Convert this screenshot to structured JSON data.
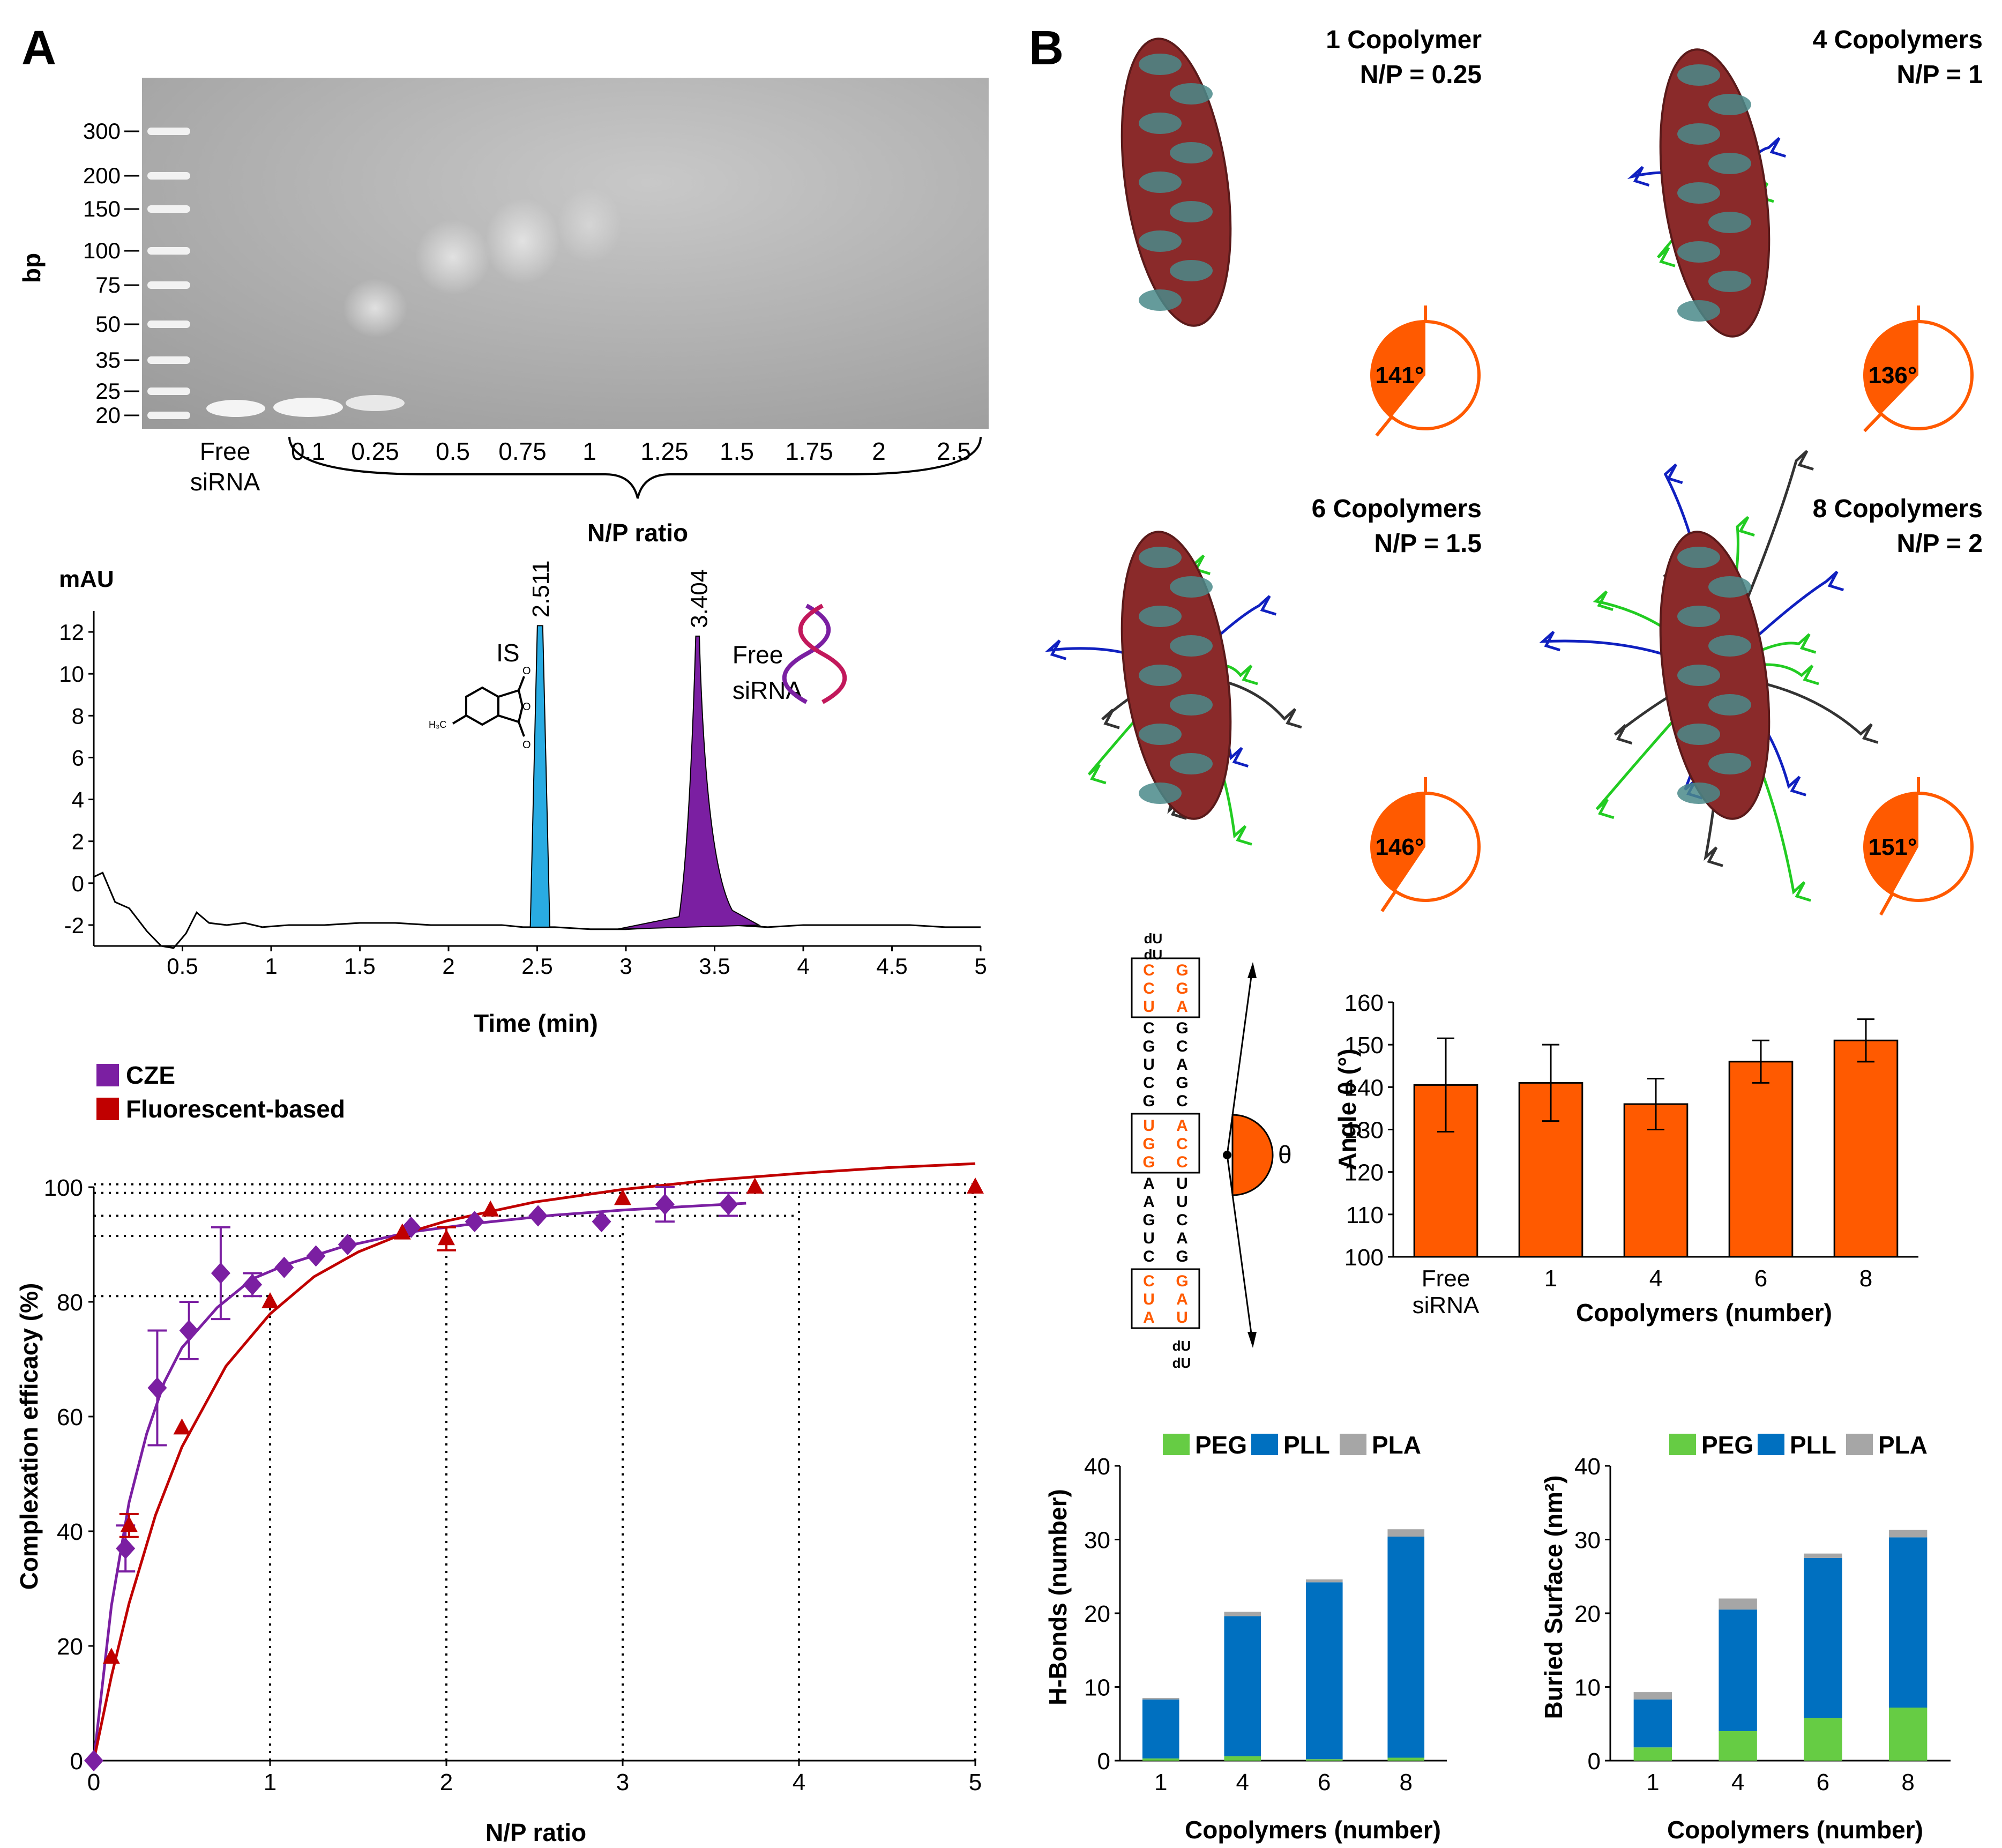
{
  "panel_labels": {
    "a": "A",
    "b": "B"
  },
  "gel": {
    "ylabel": "bp",
    "ladder": [
      "300",
      "200",
      "150",
      "100",
      "75",
      "50",
      "35",
      "25",
      "20"
    ],
    "lanes": [
      "Free siRNA",
      "0.1",
      "0.25",
      "0.5",
      "0.75",
      "1",
      "1.25",
      "1.5",
      "1.75",
      "2",
      "2.5"
    ],
    "lane_free_line1": "Free",
    "lane_free_line2": "siRNA",
    "group_label": "N/P ratio"
  },
  "structures": [
    {
      "title": "1 Copolymer",
      "np": "N/P = 0.25",
      "angle": "141°",
      "angle_value": 141
    },
    {
      "title": "4 Copolymers",
      "np": "N/P = 1",
      "angle": "136°",
      "angle_value": 136
    },
    {
      "title": "6 Copolymers",
      "np": "N/P = 1.5",
      "angle": "146°",
      "angle_value": 146
    },
    {
      "title": "8 Copolymers",
      "np": "N/P = 2",
      "angle": "151°",
      "angle_value": 151
    }
  ],
  "sequence": {
    "overhang_top": [
      "dU",
      "dU"
    ],
    "left": [
      "C",
      "C",
      "U",
      "C",
      "G",
      "U",
      "C",
      "G",
      "U",
      "G",
      "G",
      "A",
      "A",
      "G",
      "U",
      "C",
      "C",
      "U",
      "A"
    ],
    "right": [
      "G",
      "G",
      "A",
      "G",
      "C",
      "A",
      "G",
      "C",
      "A",
      "C",
      "C",
      "U",
      "U",
      "C",
      "A",
      "G",
      "G",
      "A",
      "U"
    ],
    "highlight_boxes": [
      [
        0,
        2
      ],
      [
        8,
        10
      ],
      [
        16,
        18
      ]
    ],
    "overhang_bottom": [
      "dU",
      "dU"
    ],
    "theta": "θ"
  },
  "colors": {
    "cze": "#7b1fa2",
    "fluor": "#c00000",
    "is_peak": "#29abe2",
    "sirna_peak": "#7b1fa2",
    "angle": "#ff5a00",
    "peg": "#66cc44",
    "pll": "#0070c0",
    "pla": "#a6a6a6"
  },
  "chart_data": [
    {
      "type": "line",
      "title": "",
      "ylabel": "mAU",
      "xlabel": "Time (min)",
      "xlim": [
        0,
        5
      ],
      "ylim": [
        -3,
        13
      ],
      "xticks": [
        "0.5",
        "1",
        "1.5",
        "2",
        "2.5",
        "3",
        "3.5",
        "4",
        "4.5",
        "5"
      ],
      "yticks": [
        "-2",
        "0",
        "2",
        "4",
        "6",
        "8",
        "10",
        "12"
      ],
      "peaks": [
        {
          "label": "IS",
          "time_label": "2.511",
          "x": 2.511,
          "height": 12.3
        },
        {
          "label": "Free siRNA",
          "label_line1": "Free",
          "label_line2": "siRNA",
          "time_label": "3.404",
          "x": 3.404,
          "height": 11.8
        }
      ],
      "baseline": [
        [
          0.0,
          0.3
        ],
        [
          0.05,
          0.5
        ],
        [
          0.12,
          -0.9
        ],
        [
          0.2,
          -1.2
        ],
        [
          0.3,
          -2.3
        ],
        [
          0.38,
          -3.0
        ],
        [
          0.45,
          -3.1
        ],
        [
          0.52,
          -2.4
        ],
        [
          0.58,
          -1.4
        ],
        [
          0.65,
          -1.9
        ],
        [
          0.75,
          -2.0
        ],
        [
          0.85,
          -1.9
        ],
        [
          0.95,
          -2.1
        ],
        [
          1.1,
          -2.0
        ],
        [
          1.3,
          -2.0
        ],
        [
          1.5,
          -1.9
        ],
        [
          1.7,
          -1.9
        ],
        [
          1.9,
          -2.0
        ],
        [
          2.1,
          -2.0
        ],
        [
          2.3,
          -2.0
        ],
        [
          2.42,
          -2.1
        ],
        [
          2.6,
          -2.1
        ],
        [
          2.8,
          -2.2
        ],
        [
          3.0,
          -2.2
        ],
        [
          3.2,
          -2.1
        ],
        [
          3.6,
          -2.0
        ],
        [
          3.8,
          -2.1
        ],
        [
          4.0,
          -2.0
        ],
        [
          4.3,
          -2.0
        ],
        [
          4.6,
          -2.0
        ],
        [
          4.8,
          -2.1
        ],
        [
          5.0,
          -2.1
        ]
      ]
    },
    {
      "type": "scatter",
      "title": "",
      "xlabel": "N/P ratio",
      "ylabel": "Complexation efficacy (%)",
      "xlim": [
        0,
        5
      ],
      "ylim": [
        0,
        100
      ],
      "xticks": [
        "0",
        "1",
        "2",
        "3",
        "4",
        "5"
      ],
      "yticks": [
        "0",
        "20",
        "40",
        "60",
        "80",
        "100"
      ],
      "legend": [
        "CZE",
        "Fluorescent-based"
      ],
      "series": [
        {
          "name": "CZE",
          "points": [
            [
              0,
              0,
              0
            ],
            [
              0.18,
              37,
              4
            ],
            [
              0.36,
              65,
              10
            ],
            [
              0.54,
              75,
              5
            ],
            [
              0.72,
              85,
              8
            ],
            [
              0.9,
              83,
              2
            ],
            [
              1.08,
              86,
              0
            ],
            [
              1.26,
              88,
              0
            ],
            [
              1.44,
              90,
              0
            ],
            [
              1.8,
              93,
              0
            ],
            [
              2.16,
              94,
              0
            ],
            [
              2.52,
              95,
              0
            ],
            [
              2.88,
              94,
              0
            ],
            [
              3.24,
              97,
              3
            ],
            [
              3.6,
              97,
              2
            ]
          ],
          "fit": [
            [
              0,
              0
            ],
            [
              0.1,
              27
            ],
            [
              0.2,
              45
            ],
            [
              0.3,
              57
            ],
            [
              0.4,
              66
            ],
            [
              0.5,
              72
            ],
            [
              0.7,
              79
            ],
            [
              0.9,
              84
            ],
            [
              1.1,
              86.6
            ],
            [
              1.4,
              89.5
            ],
            [
              1.8,
              92.2
            ],
            [
              2.2,
              93.8
            ],
            [
              2.6,
              95.1
            ],
            [
              3.0,
              96
            ],
            [
              3.4,
              96.7
            ],
            [
              3.7,
              97.2
            ]
          ]
        },
        {
          "name": "Fluorescent-based",
          "points": [
            [
              0.1,
              18,
              0
            ],
            [
              0.2,
              41,
              2
            ],
            [
              0.5,
              58,
              0
            ],
            [
              1.0,
              80,
              0
            ],
            [
              1.75,
              92,
              0
            ],
            [
              2.0,
              91,
              2
            ],
            [
              2.25,
              96,
              0
            ],
            [
              3.0,
              98,
              0
            ],
            [
              3.75,
              100,
              0
            ],
            [
              5.0,
              100,
              0
            ]
          ],
          "fit": [
            [
              0,
              0
            ],
            [
              0.1,
              14.7
            ],
            [
              0.2,
              27.4
            ],
            [
              0.35,
              42.8
            ],
            [
              0.5,
              54.7
            ],
            [
              0.75,
              68.8
            ],
            [
              1.0,
              77.9
            ],
            [
              1.25,
              84.4
            ],
            [
              1.5,
              88.7
            ],
            [
              1.75,
              91.8
            ],
            [
              2.0,
              94.1
            ],
            [
              2.5,
              97.4
            ],
            [
              3.0,
              99.6
            ],
            [
              3.5,
              101.2
            ],
            [
              4.0,
              102.4
            ],
            [
              4.5,
              103.4
            ],
            [
              5.0,
              104.1
            ]
          ]
        }
      ],
      "reference_lines": {
        "x": [
          1,
          2,
          3,
          4,
          5
        ],
        "y": [
          81,
          91.5,
          95,
          99,
          100.5
        ]
      }
    },
    {
      "type": "bar",
      "title": "",
      "xlabel": "Copolymers (number)",
      "ylabel": "Angle θ (°)",
      "categories": [
        "Free siRNA",
        "1",
        "4",
        "6",
        "8"
      ],
      "values": [
        140.5,
        141,
        136,
        146,
        151
      ],
      "errors": [
        11,
        9,
        6,
        5,
        5
      ],
      "ylim": [
        100,
        160
      ],
      "yticks": [
        "100",
        "110",
        "120",
        "130",
        "140",
        "150",
        "160"
      ]
    },
    {
      "type": "bar",
      "title": "",
      "xlabel": "Copolymers (number)",
      "ylabel": "H-Bonds (number)",
      "categories": [
        "1",
        "4",
        "6",
        "8"
      ],
      "series": [
        {
          "name": "PEG",
          "values": [
            0.3,
            0.6,
            0.2,
            0.4
          ]
        },
        {
          "name": "PLL",
          "values": [
            8,
            19,
            24,
            30
          ]
        },
        {
          "name": "PLA",
          "values": [
            0.2,
            0.6,
            0.4,
            1.0
          ]
        }
      ],
      "ylim": [
        0,
        40
      ],
      "yticks": [
        "0",
        "10",
        "20",
        "30",
        "40"
      ]
    },
    {
      "type": "bar",
      "title": "",
      "xlabel": "Copolymers (number)",
      "ylabel": "Buried Surface (nm²)",
      "categories": [
        "1",
        "4",
        "6",
        "8"
      ],
      "series": [
        {
          "name": "PEG",
          "values": [
            1.8,
            4.0,
            5.8,
            7.2
          ]
        },
        {
          "name": "PLL",
          "values": [
            6.5,
            16.5,
            21.7,
            23.1
          ]
        },
        {
          "name": "PLA",
          "values": [
            1.0,
            1.5,
            0.6,
            1.0
          ]
        }
      ],
      "ylim": [
        0,
        40
      ],
      "yticks": [
        "0",
        "10",
        "20",
        "30",
        "40"
      ]
    }
  ]
}
